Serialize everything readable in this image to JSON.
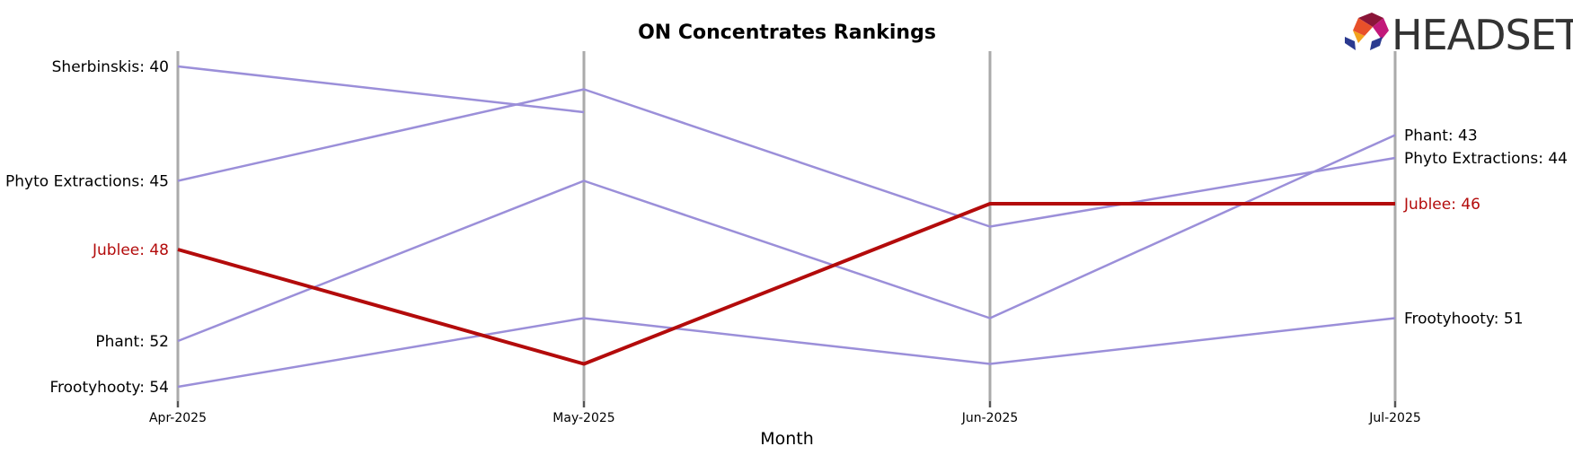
{
  "chart_data": {
    "type": "line",
    "title": "ON Concentrates Rankings",
    "xlabel": "Month",
    "ylabel": "",
    "categories": [
      "Apr-2025",
      "May-2025",
      "Jun-2025",
      "Jul-2025"
    ],
    "ylim": [
      55,
      39
    ],
    "y_inverted": true,
    "grid": false,
    "series": [
      {
        "name": "Sherbinskis",
        "values": [
          40,
          42,
          null,
          null
        ],
        "highlight": false
      },
      {
        "name": "Phyto Extractions",
        "values": [
          45,
          41,
          47,
          44
        ],
        "highlight": false
      },
      {
        "name": "Jublee",
        "values": [
          48,
          53,
          46,
          46
        ],
        "highlight": true
      },
      {
        "name": "Phant",
        "values": [
          52,
          45,
          51,
          43
        ],
        "highlight": false
      },
      {
        "name": "Frootyhooty",
        "values": [
          54,
          51,
          53,
          51
        ],
        "highlight": false
      }
    ],
    "left_labels": [
      {
        "series": "Sherbinskis",
        "text": "Sherbinskis: 40"
      },
      {
        "series": "Phyto Extractions",
        "text": "Phyto Extractions: 45"
      },
      {
        "series": "Jublee",
        "text": "Jublee: 48"
      },
      {
        "series": "Phant",
        "text": "Phant: 52"
      },
      {
        "series": "Frootyhooty",
        "text": "Frootyhooty: 54"
      }
    ],
    "right_labels": [
      {
        "series": "Phant",
        "text": "Phant: 43"
      },
      {
        "series": "Phyto Extractions",
        "text": "Phyto Extractions: 44"
      },
      {
        "series": "Jublee",
        "text": "Jublee: 46"
      },
      {
        "series": "Frootyhooty",
        "text": "Frootyhooty: 51"
      }
    ],
    "colors": {
      "line": "#9b8fd9",
      "highlight": "#b30b0b",
      "axis": "#aaaaaa",
      "label": "#000000"
    }
  },
  "logo": {
    "text": "HEADSET"
  }
}
